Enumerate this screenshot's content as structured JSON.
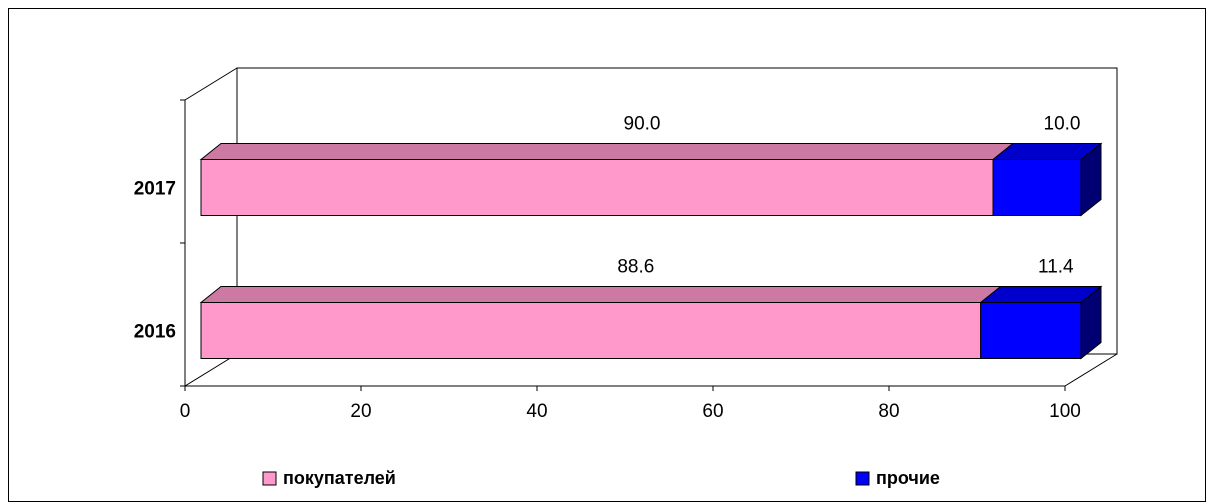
{
  "chart_data": {
    "type": "bar",
    "orientation": "horizontal",
    "stacked": true,
    "three_d": true,
    "categories": [
      "2017",
      "2016"
    ],
    "series": [
      {
        "name": "покупателей",
        "color": "#ff99cc",
        "values": [
          90.0,
          88.6
        ],
        "labels": [
          "90.0",
          "88.6"
        ]
      },
      {
        "name": "прочие",
        "color": "#0000ff",
        "values": [
          10.0,
          11.4
        ],
        "labels": [
          "10.0",
          "11.4"
        ]
      }
    ],
    "xlim": [
      0,
      100
    ],
    "xticks": [
      0,
      20,
      40,
      60,
      80,
      100
    ],
    "grid": false,
    "legend_position": "bottom"
  }
}
